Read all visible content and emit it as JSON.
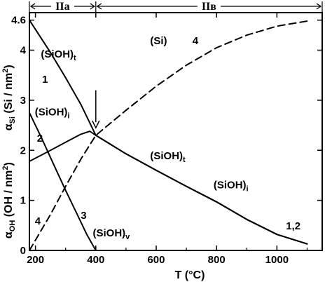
{
  "chart_data": {
    "type": "line",
    "xlabel": "T (°C)",
    "ylabel_top": "α_Si (Si / nm²)",
    "ylabel_top_main": "α",
    "ylabel_top_sub": "Si",
    "ylabel_top_unit": "(Si / nm",
    "ylabel_bottom": "α_OH (OH / nm²)",
    "ylabel_bottom_main": "α",
    "ylabel_bottom_sub": "OH",
    "ylabel_bottom_unit": "(OH / nm",
    "superscript_2": "2",
    "close_paren": ")",
    "xlim": [
      180,
      1150
    ],
    "ylim": [
      0,
      4.75
    ],
    "x_ticks": [
      200,
      400,
      600,
      800,
      1000
    ],
    "x_tick_labels": [
      "200",
      "400",
      "600",
      "800",
      "1000"
    ],
    "y_ticks": [
      0,
      1,
      2,
      3,
      4,
      4.6
    ],
    "y_tick_labels": [
      "0",
      "1",
      "2",
      "3",
      "4",
      "4.6"
    ],
    "regions": [
      {
        "label": "IIa",
        "from": 180,
        "to": 400
      },
      {
        "label": "IIв",
        "from": 400,
        "to": 1150
      }
    ],
    "series": [
      {
        "id": "1",
        "style": "solid",
        "x": [
          180,
          250,
          300,
          350,
          400,
          500,
          600,
          700,
          800,
          900,
          1000,
          1100
        ],
        "y": [
          4.6,
          3.95,
          3.45,
          2.92,
          2.3,
          1.93,
          1.6,
          1.28,
          0.97,
          0.62,
          0.32,
          0.13
        ]
      },
      {
        "id": "2",
        "style": "solid",
        "x": [
          180,
          250,
          300,
          350,
          380,
          400,
          500,
          600,
          700,
          800,
          900,
          1000,
          1100
        ],
        "y": [
          1.78,
          2.0,
          2.16,
          2.32,
          2.38,
          2.3,
          1.93,
          1.6,
          1.28,
          0.97,
          0.62,
          0.32,
          0.13
        ]
      },
      {
        "id": "3",
        "style": "solid",
        "x": [
          180,
          220,
          260,
          300,
          340,
          370,
          400
        ],
        "y": [
          2.75,
          2.25,
          1.72,
          1.2,
          0.7,
          0.32,
          0.0
        ]
      },
      {
        "id": "4",
        "style": "dashed",
        "x": [
          180,
          250,
          300,
          350,
          400,
          500,
          600,
          700,
          800,
          900,
          1000,
          1100
        ],
        "y": [
          0.0,
          0.72,
          1.28,
          1.82,
          2.3,
          2.8,
          3.28,
          3.7,
          4.05,
          4.3,
          4.48,
          4.58
        ]
      }
    ],
    "annotations": [
      {
        "main": "(SiOH)",
        "sub": "t",
        "x": 218,
        "y": 3.85
      },
      {
        "main": "1",
        "sub": "",
        "x": 222,
        "y": 3.35
      },
      {
        "main": "(SiOH)",
        "sub": "i",
        "x": 198,
        "y": 2.7
      },
      {
        "main": "2",
        "sub": "",
        "x": 205,
        "y": 2.17
      },
      {
        "main": "(Si)",
        "sub": "",
        "x": 580,
        "y": 4.12
      },
      {
        "main": "4",
        "sub": "",
        "x": 720,
        "y": 4.12
      },
      {
        "main": "(SiOH)",
        "sub": "t",
        "x": 580,
        "y": 1.82
      },
      {
        "main": "(SiOH)",
        "sub": "i",
        "x": 790,
        "y": 1.24
      },
      {
        "main": "1,2",
        "sub": "",
        "x": 1030,
        "y": 0.42
      },
      {
        "main": "3",
        "sub": "",
        "x": 350,
        "y": 0.63
      },
      {
        "main": "(SiOH)",
        "sub": "v",
        "x": 390,
        "y": 0.28
      },
      {
        "main": "4",
        "sub": "",
        "x": 198,
        "y": 0.52
      }
    ],
    "arrow": {
      "x": 400,
      "y_from": 3.2,
      "y_to": 2.45
    },
    "grid": false
  }
}
